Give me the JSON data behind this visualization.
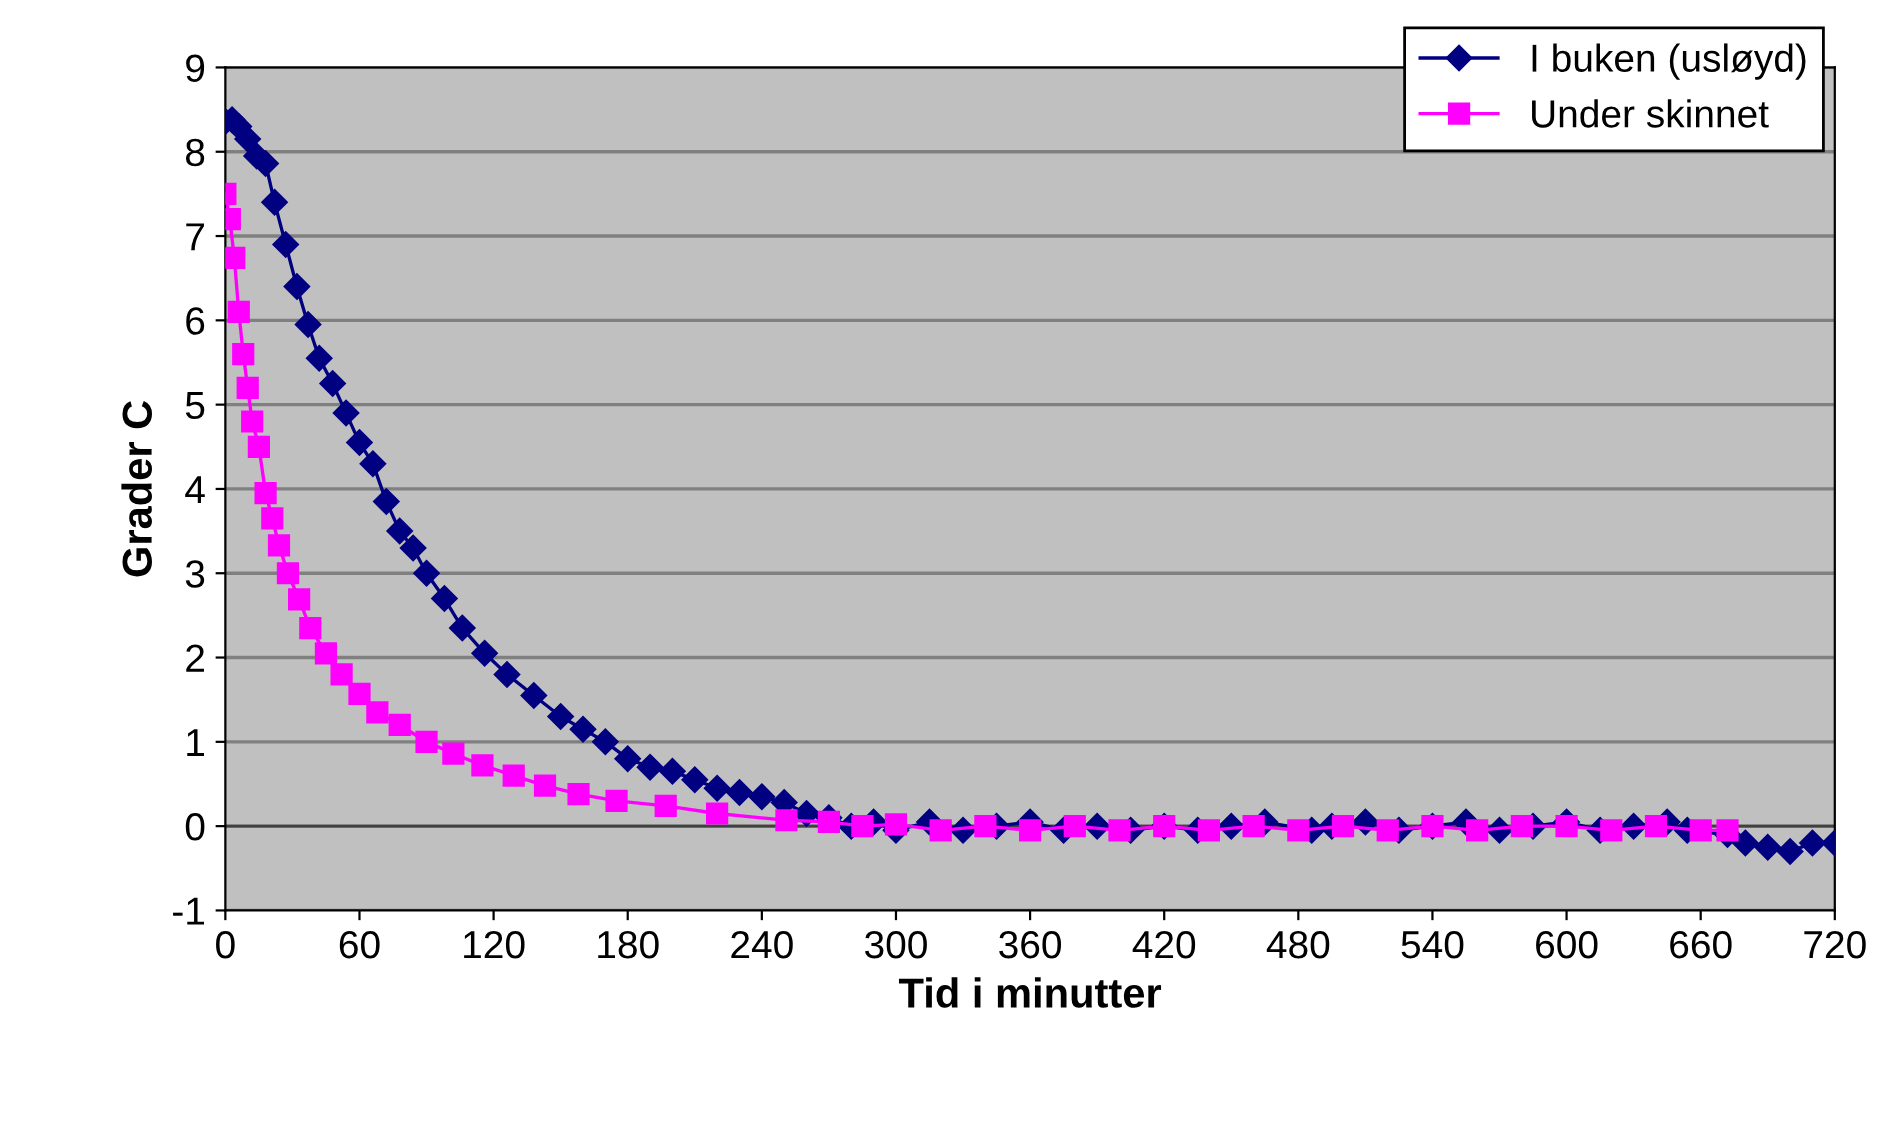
{
  "chart_data": {
    "type": "line",
    "xlabel": "Tid i minutter",
    "ylabel": "Grader C",
    "xlim": [
      0,
      720
    ],
    "xticks": [
      0,
      60,
      120,
      180,
      240,
      300,
      360,
      420,
      480,
      540,
      600,
      660,
      720
    ],
    "ylim": [
      -1,
      9
    ],
    "yticks": [
      -1,
      0,
      1,
      2,
      3,
      4,
      5,
      6,
      7,
      8,
      9
    ],
    "grid": "y",
    "legend": "top right",
    "series": [
      {
        "name": "I buken (usløyd)",
        "color": "#000080",
        "marker": "diamond",
        "x": [
          0,
          3,
          6,
          10,
          14,
          18,
          22,
          27,
          32,
          37,
          42,
          48,
          54,
          60,
          66,
          72,
          78,
          84,
          90,
          98,
          106,
          116,
          126,
          138,
          150,
          160,
          170,
          180,
          190,
          200,
          210,
          220,
          230,
          240,
          250,
          260,
          270,
          280,
          290,
          300,
          315,
          330,
          345,
          360,
          375,
          390,
          405,
          420,
          435,
          450,
          465,
          486,
          495,
          510,
          525,
          540,
          555,
          570,
          585,
          600,
          615,
          630,
          645,
          654,
          672,
          680,
          690,
          700,
          710,
          720
        ],
        "values": [
          8.36,
          8.38,
          8.3,
          8.15,
          7.95,
          7.86,
          7.4,
          6.9,
          6.4,
          5.95,
          5.55,
          5.25,
          4.9,
          4.55,
          4.3,
          3.85,
          3.5,
          3.3,
          3.0,
          2.7,
          2.35,
          2.05,
          1.8,
          1.55,
          1.3,
          1.15,
          1.0,
          0.8,
          0.7,
          0.65,
          0.55,
          0.45,
          0.4,
          0.35,
          0.28,
          0.15,
          0.1,
          0.0,
          0.05,
          -0.05,
          0.05,
          -0.05,
          0.0,
          0.05,
          -0.05,
          0.0,
          -0.05,
          0.0,
          -0.05,
          0.0,
          0.05,
          -0.05,
          0.0,
          0.05,
          -0.05,
          0.0,
          0.05,
          -0.05,
          0.0,
          0.05,
          -0.05,
          0.0,
          0.05,
          -0.05,
          -0.1,
          -0.2,
          -0.25,
          -0.3,
          -0.2,
          -0.2
        ]
      },
      {
        "name": "Under skinnet",
        "color": "#ff00ff",
        "marker": "square",
        "x": [
          0,
          2,
          4,
          6,
          8,
          10,
          12,
          15,
          18,
          21,
          24,
          28,
          33,
          38,
          45,
          52,
          60,
          68,
          78,
          90,
          102,
          115,
          129,
          143,
          158,
          175,
          197,
          220,
          251,
          270,
          285,
          300,
          320,
          340,
          360,
          380,
          400,
          420,
          440,
          460,
          480,
          500,
          520,
          540,
          560,
          580,
          600,
          620,
          640,
          660,
          672
        ],
        "values": [
          7.5,
          7.2,
          6.74,
          6.1,
          5.6,
          5.2,
          4.8,
          4.5,
          3.95,
          3.65,
          3.33,
          3.0,
          2.69,
          2.35,
          2.05,
          1.8,
          1.57,
          1.35,
          1.2,
          1.0,
          0.86,
          0.72,
          0.6,
          0.48,
          0.38,
          0.3,
          0.24,
          0.15,
          0.07,
          0.05,
          0.0,
          0.02,
          -0.05,
          0.0,
          -0.05,
          0.0,
          -0.05,
          0.0,
          -0.05,
          0.0,
          -0.05,
          0.0,
          -0.05,
          0.0,
          -0.05,
          0.0,
          0.0,
          -0.05,
          0.0,
          -0.05,
          -0.05
        ]
      }
    ]
  }
}
